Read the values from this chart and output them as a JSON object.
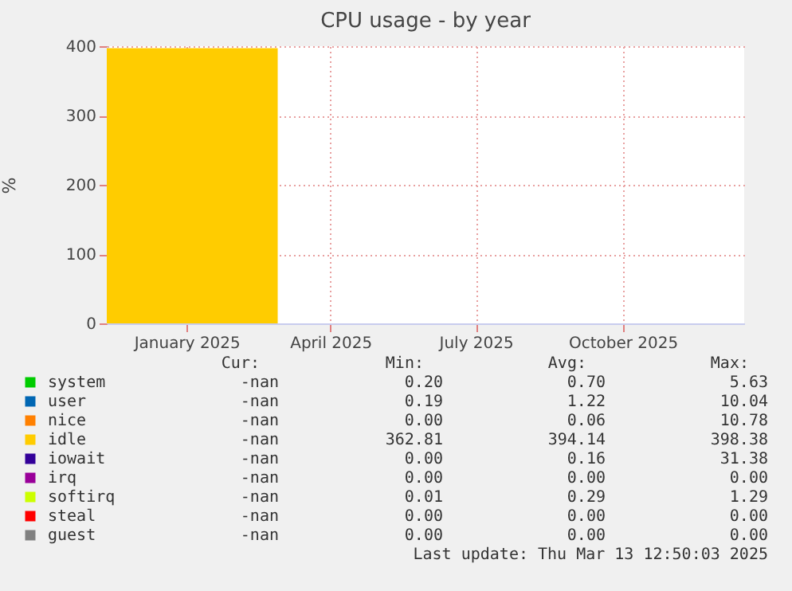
{
  "chart_data": {
    "type": "area",
    "title": "CPU usage - by year",
    "ylabel": "%",
    "x": [
      "2024-11-26",
      "2024-12-15",
      "2025-01-15",
      "2025-02-15",
      "2025-03-13"
    ],
    "xlim": [
      "2024-11-26",
      "2025-12-30"
    ],
    "xticks": [
      {
        "value": "2025-01-15",
        "label": "January 2025"
      },
      {
        "value": "2025-04-15",
        "label": "April 2025"
      },
      {
        "value": "2025-07-15",
        "label": "July 2025"
      },
      {
        "value": "2025-10-15",
        "label": "October 2025"
      }
    ],
    "ylim": [
      0,
      400
    ],
    "yticks": [
      0,
      100,
      200,
      300,
      400
    ],
    "grid": true,
    "legend": "bottom",
    "series": [
      {
        "name": "system",
        "color": "#00cc00",
        "values": [
          null,
          null,
          null,
          null,
          null
        ]
      },
      {
        "name": "user",
        "color": "#0066b3",
        "values": [
          null,
          null,
          null,
          null,
          null
        ]
      },
      {
        "name": "nice",
        "color": "#ff8000",
        "values": [
          null,
          null,
          null,
          null,
          null
        ]
      },
      {
        "name": "idle",
        "color": "#ffcc00",
        "values": [
          397,
          397,
          397,
          397,
          397
        ]
      },
      {
        "name": "iowait",
        "color": "#330099",
        "values": [
          null,
          null,
          null,
          null,
          null
        ]
      },
      {
        "name": "irq",
        "color": "#990099",
        "values": [
          null,
          null,
          null,
          null,
          null
        ]
      },
      {
        "name": "softirq",
        "color": "#ccff00",
        "values": [
          null,
          null,
          null,
          null,
          null
        ]
      },
      {
        "name": "steal",
        "color": "#ff0000",
        "values": [
          null,
          null,
          null,
          null,
          null
        ]
      },
      {
        "name": "guest",
        "color": "#808080",
        "values": [
          null,
          null,
          null,
          null,
          null
        ]
      }
    ],
    "annotations": [
      "Cur:",
      "Min:",
      "Avg:",
      "Max:",
      "-nan",
      "0.20",
      "0.70",
      "5.63",
      "-nan",
      "0.19",
      "1.22",
      "10.04",
      "-nan",
      "0.00",
      "0.06",
      "10.78",
      "-nan",
      "362.81",
      "394.14",
      "398.38",
      "-nan",
      "0.00",
      "0.16",
      "31.38",
      "-nan",
      "0.00",
      "0.00",
      "0.00",
      "-nan",
      "0.01",
      "0.29",
      "1.29",
      "-nan",
      "0.00",
      "0.00",
      "0.00",
      "-nan",
      "0.00",
      "0.00",
      "0.00",
      "Last update: Thu Mar 13 12:50:03 2025"
    ]
  }
}
